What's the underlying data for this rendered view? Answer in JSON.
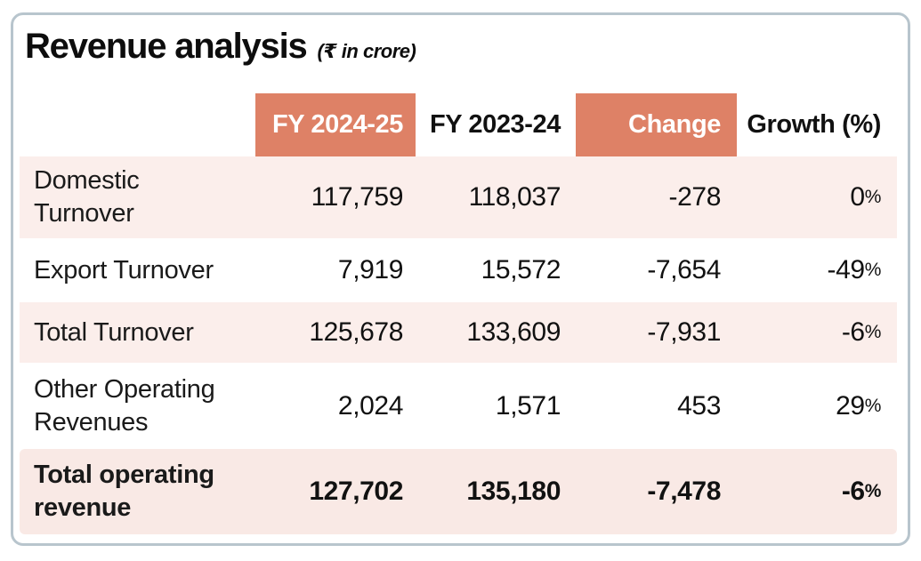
{
  "card": {
    "title": "Revenue analysis",
    "subtitle": "(₹ in crore)"
  },
  "colors": {
    "accent": "#DE8166",
    "stripe_row": "#FBEEEB",
    "total_row": "#F9E9E5",
    "card_border": "#B8C5CD",
    "header_text_on_accent": "#FFFFFF",
    "text": "#111111"
  },
  "chart_data": {
    "type": "table",
    "title": "Revenue analysis",
    "unit_note": "(₹ in crore)",
    "columns": [
      {
        "label": "",
        "highlight": false
      },
      {
        "label": "FY 2024-25",
        "highlight": true
      },
      {
        "label": "FY 2023-24",
        "highlight": false
      },
      {
        "label": "Change",
        "highlight": true
      },
      {
        "label": "Growth (%)",
        "highlight": false
      }
    ],
    "rows": [
      {
        "label": "Domestic Turnover",
        "fy_2024_25": "117,759",
        "fy_2023_24": "118,037",
        "change": "-278",
        "growth": "0%",
        "total": false
      },
      {
        "label": "Export Turnover",
        "fy_2024_25": "7,919",
        "fy_2023_24": "15,572",
        "change": "-7,654",
        "growth": "-49%",
        "total": false
      },
      {
        "label": "Total Turnover",
        "fy_2024_25": "125,678",
        "fy_2023_24": "133,609",
        "change": "-7,931",
        "growth": "-6%",
        "total": false
      },
      {
        "label": "Other Operating Revenues",
        "fy_2024_25": "2,024",
        "fy_2023_24": "1,571",
        "change": "453",
        "growth": "29%",
        "total": false
      },
      {
        "label": "Total operating revenue",
        "fy_2024_25": "127,702",
        "fy_2023_24": "135,180",
        "change": "-7,478",
        "growth": "-6%",
        "total": true
      }
    ]
  }
}
